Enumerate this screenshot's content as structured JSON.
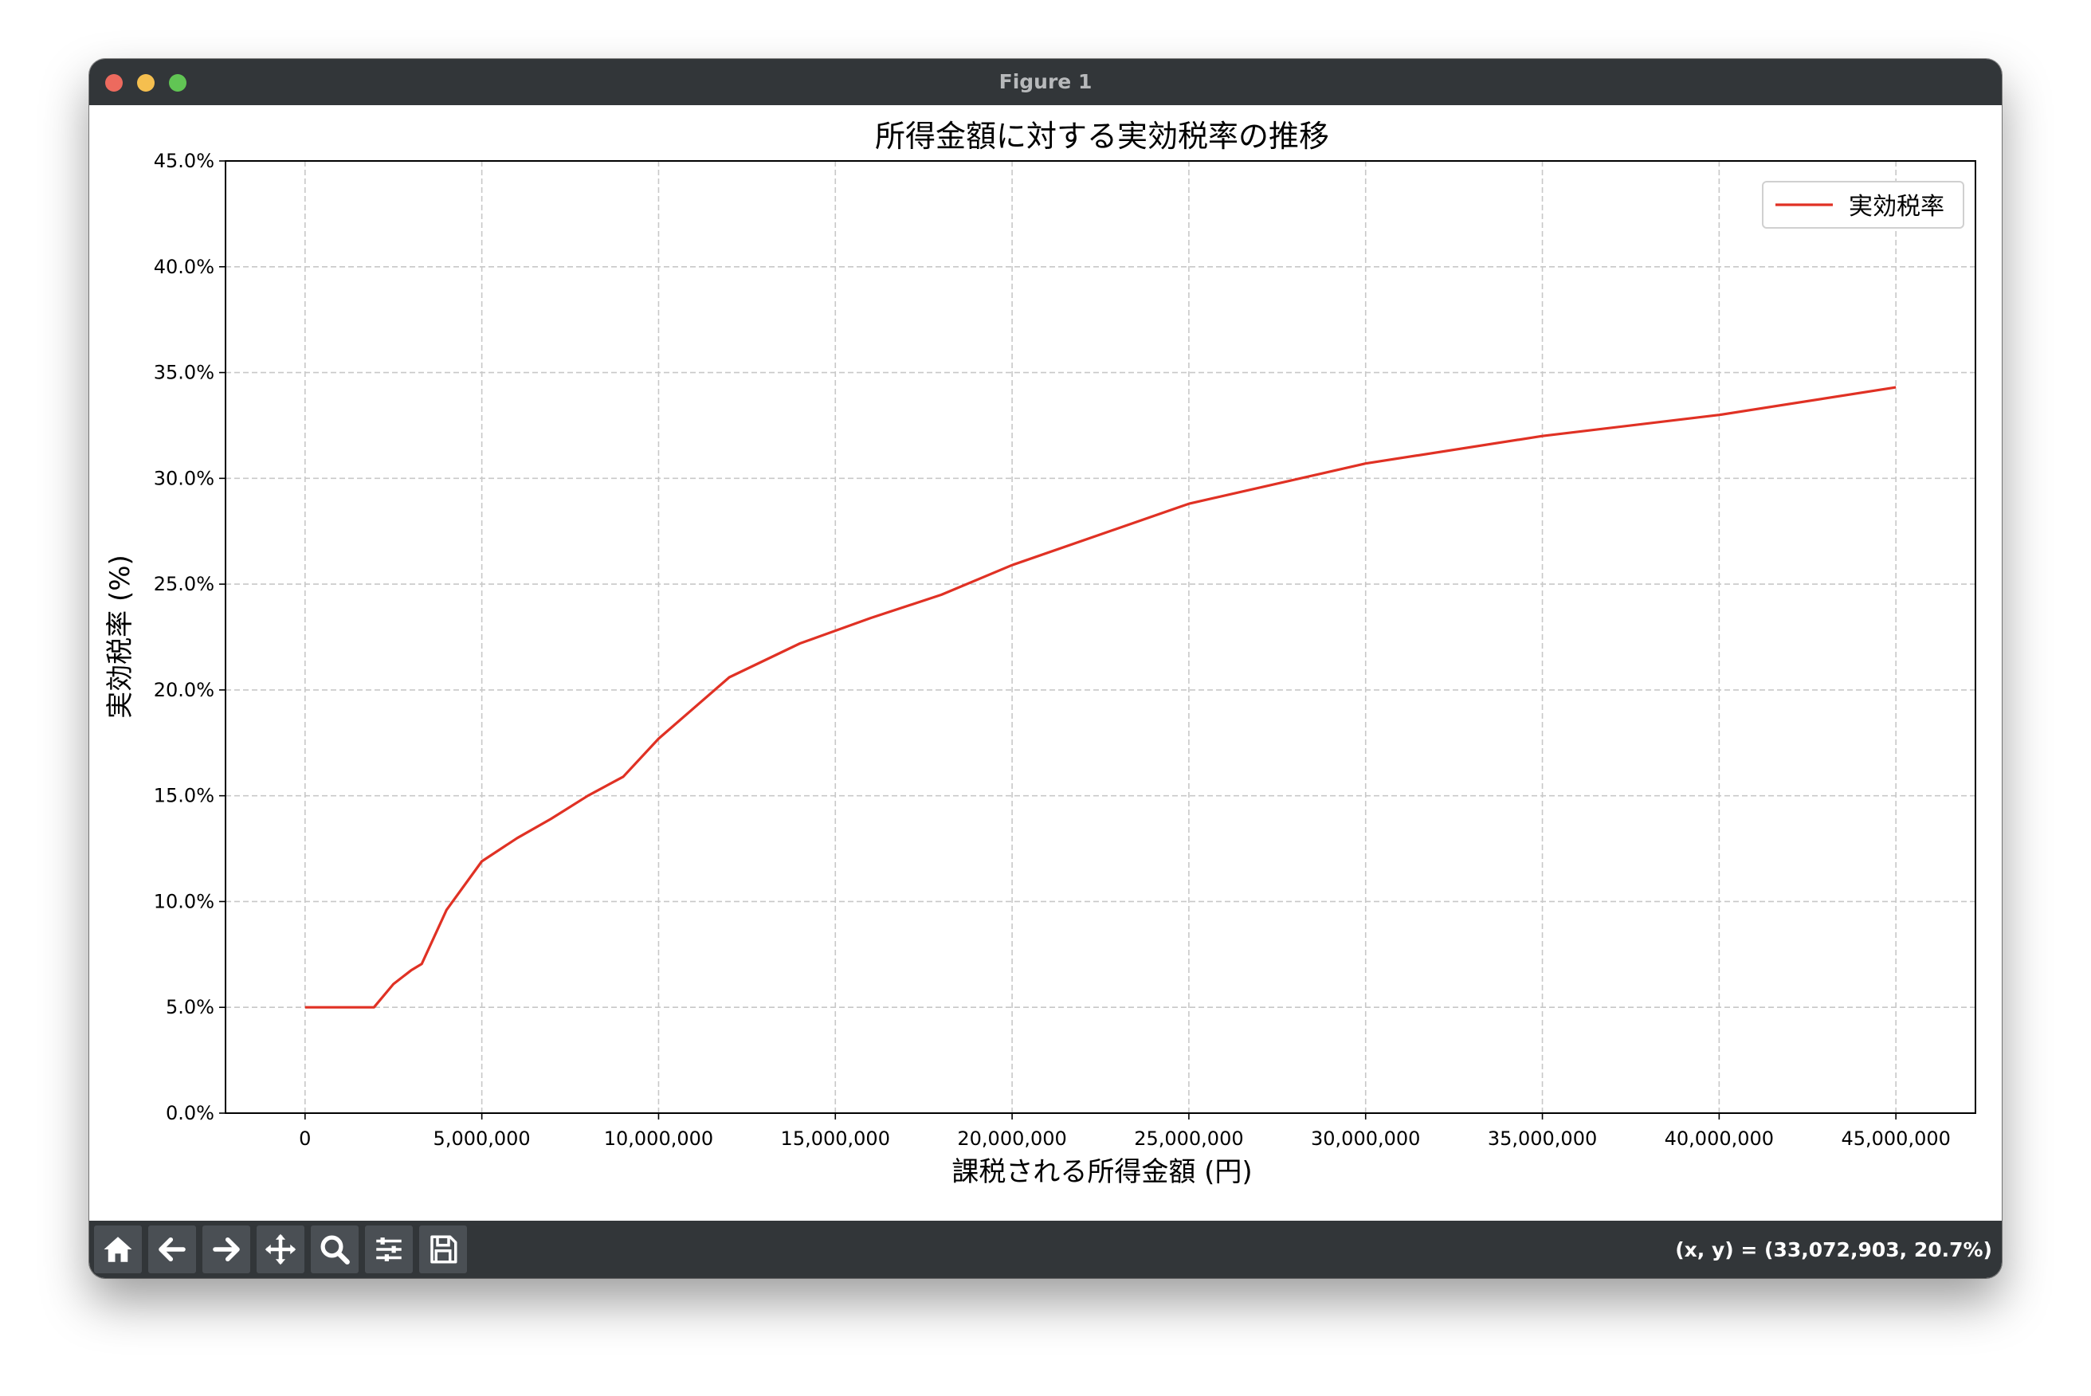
{
  "window": {
    "title": "Figure 1"
  },
  "toolbar": {
    "buttons": [
      {
        "name": "home-button",
        "icon": "home-icon"
      },
      {
        "name": "back-button",
        "icon": "arrow-left-icon"
      },
      {
        "name": "forward-button",
        "icon": "arrow-right-icon"
      },
      {
        "name": "pan-button",
        "icon": "move-icon"
      },
      {
        "name": "zoom-button",
        "icon": "magnifier-icon"
      },
      {
        "name": "configure-subplots-button",
        "icon": "sliders-icon"
      },
      {
        "name": "save-button",
        "icon": "floppy-disk-icon"
      }
    ],
    "coords": "(x, y) = (33,072,903, 20.7%)"
  },
  "chart_data": {
    "type": "line",
    "title": "所得金額に対する実効税率の推移",
    "xlabel": "課税される所得金額 (円)",
    "ylabel": "実効税率 (%)",
    "xlim": [
      -2250000,
      47250000
    ],
    "ylim": [
      0,
      45
    ],
    "xticks": [
      0,
      5000000,
      10000000,
      15000000,
      20000000,
      25000000,
      30000000,
      35000000,
      40000000,
      45000000
    ],
    "xtick_labels": [
      "0",
      "5,000,000",
      "10,000,000",
      "15,000,000",
      "20,000,000",
      "25,000,000",
      "30,000,000",
      "35,000,000",
      "40,000,000",
      "45,000,000"
    ],
    "yticks": [
      0,
      5,
      10,
      15,
      20,
      25,
      30,
      35,
      40,
      45
    ],
    "ytick_labels": [
      "0.0%",
      "5.0%",
      "10.0%",
      "15.0%",
      "20.0%",
      "25.0%",
      "30.0%",
      "35.0%",
      "40.0%",
      "45.0%"
    ],
    "grid": true,
    "legend_position": "top-right",
    "series": [
      {
        "name": "実効税率",
        "color": "#e03124",
        "x": [
          0,
          1000000,
          1950000,
          2500000,
          3000000,
          3300000,
          4000000,
          5000000,
          6000000,
          6950000,
          8000000,
          9000000,
          10000000,
          12000000,
          14000000,
          16000000,
          18000000,
          20000000,
          25000000,
          30000000,
          35000000,
          40000000,
          45000000
        ],
        "y": [
          5.0,
          5.0,
          5.0,
          6.1,
          6.75,
          7.05,
          9.6,
          11.9,
          13.0,
          13.9,
          15.0,
          15.9,
          17.7,
          20.6,
          22.2,
          23.4,
          24.5,
          25.9,
          28.8,
          30.7,
          32.0,
          33.0,
          34.3
        ]
      }
    ]
  }
}
